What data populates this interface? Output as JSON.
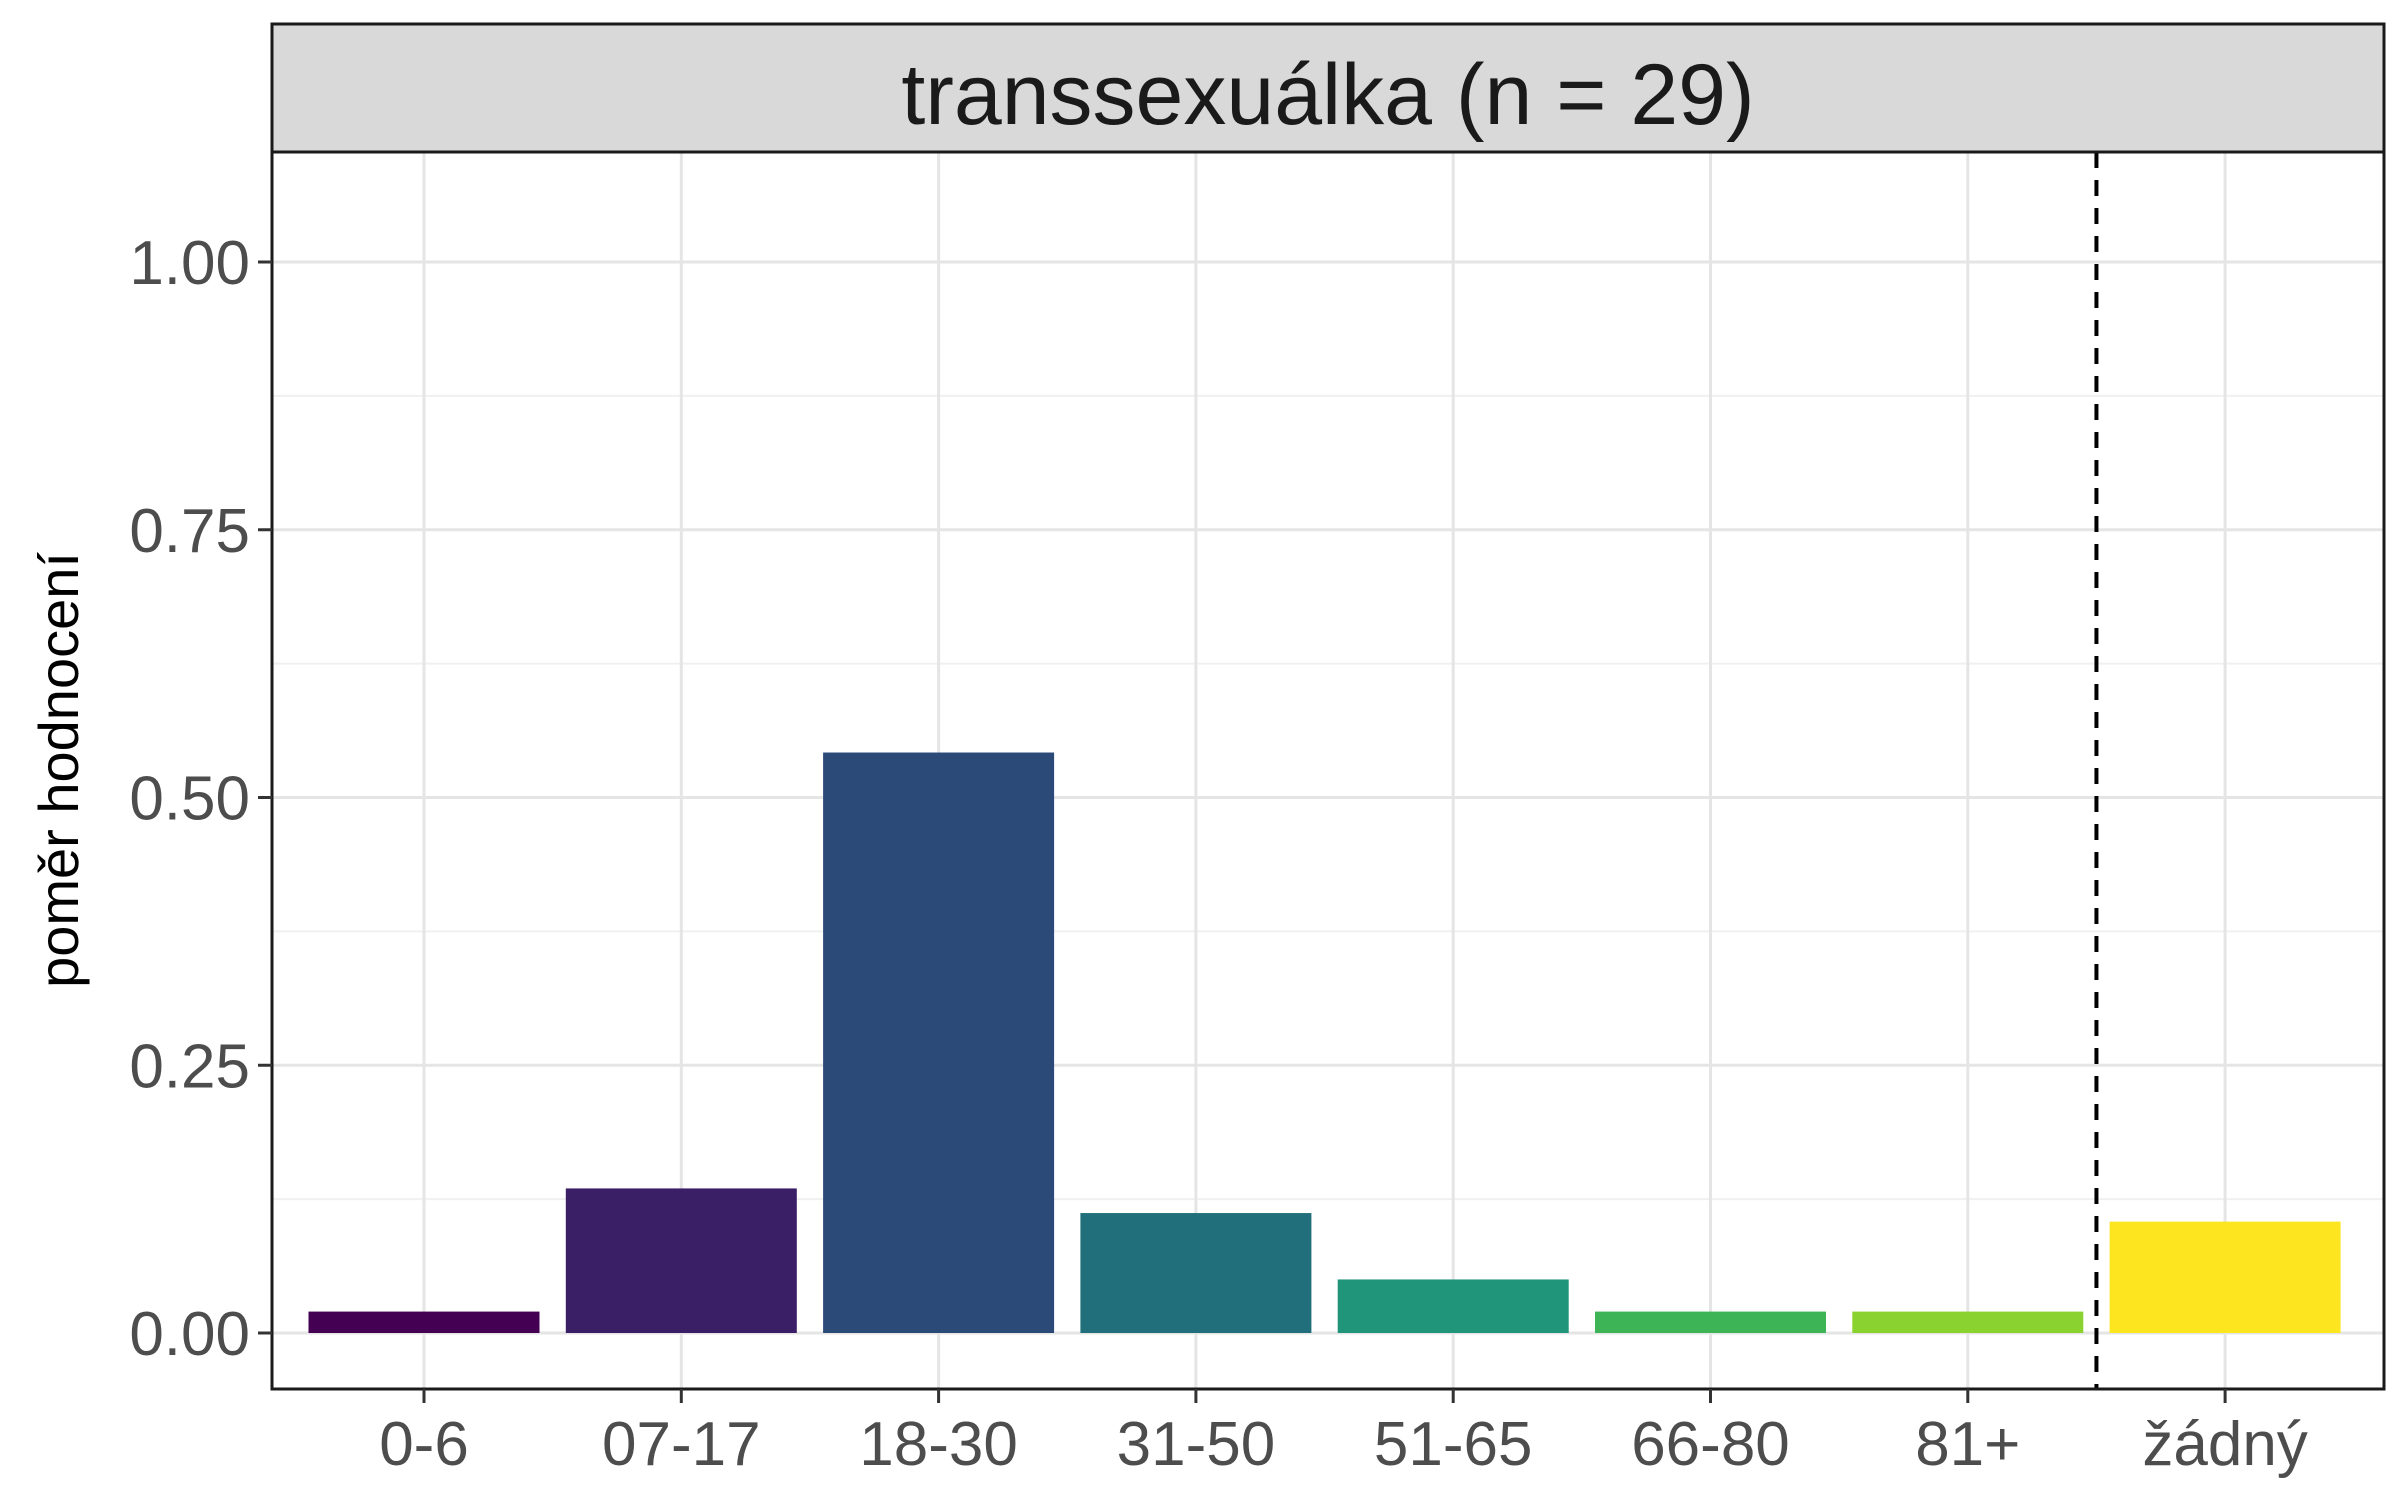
{
  "chart_data": {
    "type": "bar",
    "facet_title": "transsexuálka (n = 29)",
    "ylabel": "poměr hodnocení",
    "xlabel": "",
    "ylim": [
      0,
      1.1
    ],
    "y_ticks": [
      "0.00",
      "0.25",
      "0.50",
      "0.75",
      "1.00"
    ],
    "y_tick_values": [
      0,
      0.25,
      0.5,
      0.75,
      1.0
    ],
    "categories": [
      "0-6",
      "07-17",
      "18-30",
      "31-50",
      "51-65",
      "66-80",
      "81+",
      "žádný"
    ],
    "values": [
      0.02,
      0.135,
      0.542,
      0.112,
      0.05,
      0.02,
      0.02,
      0.104
    ],
    "colors": [
      "#440154",
      "#3B1F66",
      "#2C4A78",
      "#216F7A",
      "#21957A",
      "#3DB556",
      "#8AD22F",
      "#FDE51F"
    ],
    "separator_after_category": "81+",
    "separator_style": "dashed",
    "grid": true,
    "legend": "none"
  }
}
